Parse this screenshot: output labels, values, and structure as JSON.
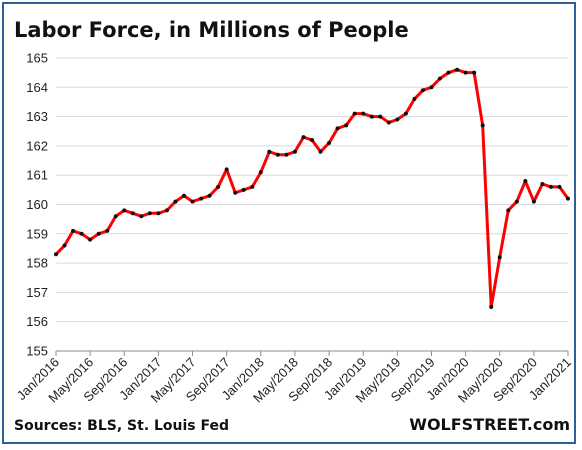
{
  "source_text": "Sources: BLS, St. Louis Fed",
  "brand_text": "WOLFSTREET.com",
  "chart_data": {
    "type": "line",
    "title": "Labor Force, in Millions of People",
    "xlabel": "",
    "ylabel": "",
    "ylim": [
      155,
      165
    ],
    "yticks": [
      155,
      156,
      157,
      158,
      159,
      160,
      161,
      162,
      163,
      164,
      165
    ],
    "grid": true,
    "line_color": "#ff0000",
    "marker_color": "#111111",
    "xtick_labels": [
      "Jan/2016",
      "May/2016",
      "Sep/2016",
      "Jan/2017",
      "May/2017",
      "Sep/2017",
      "Jan/2018",
      "May/2018",
      "Sep/2018",
      "Jan/2019",
      "May/2019",
      "Sep/2019",
      "Jan/2020",
      "May/2020",
      "Sep/2020",
      "Jan/2021"
    ],
    "x": [
      "Jan/2016",
      "Feb/2016",
      "Mar/2016",
      "Apr/2016",
      "May/2016",
      "Jun/2016",
      "Jul/2016",
      "Aug/2016",
      "Sep/2016",
      "Oct/2016",
      "Nov/2016",
      "Dec/2016",
      "Jan/2017",
      "Feb/2017",
      "Mar/2017",
      "Apr/2017",
      "May/2017",
      "Jun/2017",
      "Jul/2017",
      "Aug/2017",
      "Sep/2017",
      "Oct/2017",
      "Nov/2017",
      "Dec/2017",
      "Jan/2018",
      "Feb/2018",
      "Mar/2018",
      "Apr/2018",
      "May/2018",
      "Jun/2018",
      "Jul/2018",
      "Aug/2018",
      "Sep/2018",
      "Oct/2018",
      "Nov/2018",
      "Dec/2018",
      "Jan/2019",
      "Feb/2019",
      "Mar/2019",
      "Apr/2019",
      "May/2019",
      "Jun/2019",
      "Jul/2019",
      "Aug/2019",
      "Sep/2019",
      "Oct/2019",
      "Nov/2019",
      "Dec/2019",
      "Jan/2020",
      "Feb/2020",
      "Mar/2020",
      "Apr/2020",
      "May/2020",
      "Jun/2020",
      "Jul/2020",
      "Aug/2020",
      "Sep/2020",
      "Oct/2020",
      "Nov/2020",
      "Dec/2020",
      "Jan/2021"
    ],
    "series": [
      {
        "values": [
          158.3,
          158.6,
          159.1,
          159.0,
          158.8,
          159.0,
          159.1,
          159.6,
          159.8,
          159.7,
          159.6,
          159.7,
          159.7,
          159.8,
          160.1,
          160.3,
          160.1,
          160.2,
          160.3,
          160.6,
          161.2,
          160.4,
          160.5,
          160.6,
          161.1,
          161.8,
          161.7,
          161.7,
          161.8,
          162.3,
          162.2,
          161.8,
          162.1,
          162.6,
          162.7,
          163.1,
          163.1,
          163.0,
          163.0,
          162.8,
          162.9,
          163.1,
          163.6,
          163.9,
          164.0,
          164.3,
          164.5,
          164.6,
          164.5,
          164.5,
          162.7,
          156.5,
          158.2,
          159.8,
          160.1,
          160.8,
          160.1,
          160.7,
          160.6,
          160.6,
          160.2
        ]
      }
    ]
  }
}
